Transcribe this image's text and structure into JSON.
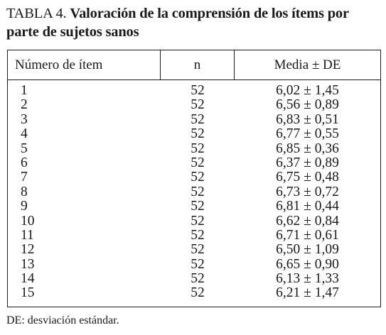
{
  "caption": {
    "label": "TABLA 4.",
    "title": "Valoración de la comprensión de los ítems por parte de sujetos sanos"
  },
  "table": {
    "headers": [
      "Número de ítem",
      "n",
      "Media ± DE"
    ],
    "rows": [
      [
        "1",
        "52",
        "6,02 ± 1,45"
      ],
      [
        "2",
        "52",
        "6,56 ± 0,89"
      ],
      [
        "3",
        "52",
        "6,83 ± 0,51"
      ],
      [
        "4",
        "52",
        "6,77 ± 0,55"
      ],
      [
        "5",
        "52",
        "6,85 ± 0,36"
      ],
      [
        "6",
        "52",
        "6,37 ± 0,89"
      ],
      [
        "7",
        "52",
        "6,75 ± 0,48"
      ],
      [
        "8",
        "52",
        "6,73 ± 0,72"
      ],
      [
        "9",
        "52",
        "6,81 ± 0,44"
      ],
      [
        "10",
        "52",
        "6,62 ± 0,84"
      ],
      [
        "11",
        "52",
        "6,71 ± 0,61"
      ],
      [
        "12",
        "52",
        "6,50 ± 1,09"
      ],
      [
        "13",
        "52",
        "6,65 ± 0,90"
      ],
      [
        "14",
        "52",
        "6,13 ± 1,33"
      ],
      [
        "15",
        "52",
        "6,21 ± 1,47"
      ]
    ]
  },
  "footnote": "DE: desviación estándar."
}
